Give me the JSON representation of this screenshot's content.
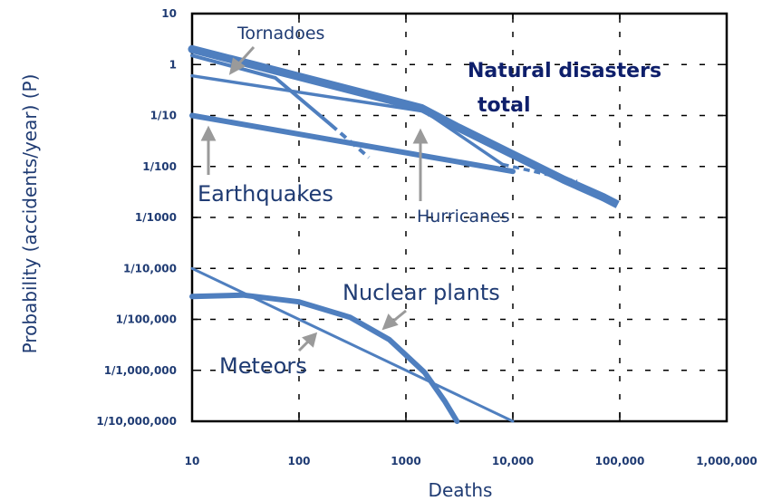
{
  "chart_data": {
    "type": "line",
    "xlabel": "Deaths",
    "ylabel": "Probability (accidents/year) (P)",
    "x_scale": "log",
    "y_scale": "log",
    "xlim": [
      10,
      1000000
    ],
    "ylim": [
      1e-07,
      10
    ],
    "x_ticks": [
      {
        "value": 10,
        "label": "10"
      },
      {
        "value": 100,
        "label": "100"
      },
      {
        "value": 1000,
        "label": "1000"
      },
      {
        "value": 10000,
        "label": "10,000"
      },
      {
        "value": 100000,
        "label": "100,000"
      },
      {
        "value": 1000000,
        "label": "1,000,000"
      }
    ],
    "y_ticks": [
      {
        "value": 10,
        "label": "10"
      },
      {
        "value": 1,
        "label": "1"
      },
      {
        "value": 0.1,
        "label": "1/10"
      },
      {
        "value": 0.01,
        "label": "1/100"
      },
      {
        "value": 0.001,
        "label": "1/1000"
      },
      {
        "value": 0.0001,
        "label": "1/10,000"
      },
      {
        "value": 1e-05,
        "label": "1/100,000"
      },
      {
        "value": 1e-06,
        "label": "1/1,000,000"
      },
      {
        "value": 1e-07,
        "label": "1/10,000,000"
      }
    ],
    "grid": "dashed-inner",
    "color": "#4f7fbf",
    "series": [
      {
        "name": "Natural disasters total",
        "width": 9,
        "x": [
          10,
          1400,
          3000,
          30000,
          70000
        ],
        "y": [
          2,
          0.14,
          0.06,
          0.0055,
          0.0025
        ],
        "extension": {
          "x": [
            70000,
            100000
          ],
          "y": [
            0.0025,
            0.0017
          ]
        }
      },
      {
        "name": "Tornadoes",
        "width": 4,
        "x": [
          10,
          60,
          200
        ],
        "y": [
          1.5,
          0.55,
          0.065
        ],
        "extension": {
          "x": [
            200,
            450
          ],
          "y": [
            0.065,
            0.015
          ]
        }
      },
      {
        "name": "Hurricanes",
        "width": 3.5,
        "x": [
          10,
          1500,
          8000
        ],
        "y": [
          0.6,
          0.12,
          0.011
        ],
        "extension": {
          "x": [
            8000,
            40000
          ],
          "y": [
            0.011,
            0.0051
          ]
        }
      },
      {
        "name": "Earthquakes",
        "width": 6,
        "x": [
          10,
          10000
        ],
        "y": [
          0.1,
          0.008
        ]
      },
      {
        "name": "Meteors",
        "width": 3,
        "x": [
          10,
          10000
        ],
        "y": [
          0.0001,
          1e-07
        ]
      },
      {
        "name": "Nuclear plants",
        "width": 6,
        "x": [
          10,
          30,
          100,
          300,
          700,
          1500,
          2300,
          3000
        ],
        "y": [
          2.8e-05,
          3e-05,
          2.2e-05,
          1.1e-05,
          4e-06,
          9e-07,
          2.5e-07,
          1e-07
        ]
      }
    ],
    "annotations": [
      {
        "text": "Tornadoes"
      },
      {
        "text": "Natural disasters"
      },
      {
        "text": "total"
      },
      {
        "text": "Earthquakes"
      },
      {
        "text": "Hurricanes"
      },
      {
        "text": "Nuclear plants"
      },
      {
        "text": "Meteors"
      }
    ]
  }
}
